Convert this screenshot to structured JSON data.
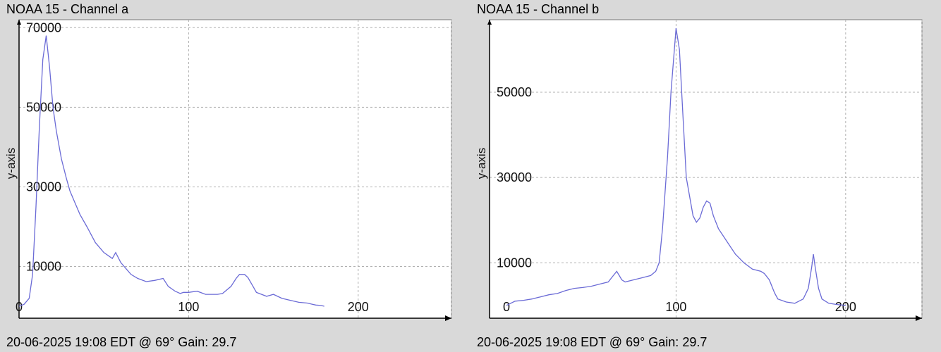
{
  "charts": [
    {
      "title": "NOAA 15 - Channel a",
      "footer": "20-06-2025 19:08 EDT @ 69° Gain: 29.7"
    },
    {
      "title": "NOAA 15 - Channel b",
      "footer": "20-06-2025 19:08 EDT @ 69° Gain: 29.7"
    }
  ],
  "colors": {
    "background": "#d9d9d9",
    "plot_background": "#ffffff",
    "line": "#6b6bd6",
    "grid": "#b0b0b0",
    "axis": "#000000"
  },
  "chart_data": [
    {
      "type": "line",
      "title": "NOAA 15 - Channel a",
      "xlabel": "",
      "ylabel": "y-axis",
      "xlim": [
        0,
        255
      ],
      "ylim": [
        -3000,
        72000
      ],
      "xticks": [
        0,
        100,
        200
      ],
      "yticks": [
        10000,
        30000,
        50000,
        70000
      ],
      "grid": true,
      "series": [
        {
          "x": [
            0,
            3,
            6,
            8,
            10,
            12,
            14,
            16,
            18,
            20,
            22,
            25,
            28,
            30,
            33,
            36,
            40,
            45,
            50,
            55,
            57,
            60,
            63,
            66,
            70,
            75,
            80,
            85,
            88,
            92,
            95,
            97,
            100,
            105,
            110,
            113,
            117,
            120,
            125,
            128,
            130,
            133,
            135,
            138,
            140,
            143,
            146,
            150,
            155,
            160,
            165,
            170,
            173,
            175,
            178,
            180
          ],
          "y": [
            0,
            500,
            2000,
            8000,
            25000,
            45000,
            62000,
            68000,
            60000,
            50000,
            44000,
            37000,
            32000,
            29000,
            26000,
            23000,
            20000,
            16000,
            13500,
            12000,
            13500,
            11000,
            9500,
            8000,
            7000,
            6200,
            6500,
            7000,
            5000,
            3800,
            3200,
            3500,
            3500,
            3800,
            3000,
            3000,
            3000,
            3200,
            5000,
            7000,
            8000,
            8000,
            7200,
            5000,
            3500,
            3000,
            2500,
            3000,
            2000,
            1500,
            1000,
            800,
            500,
            300,
            200,
            0
          ]
        }
      ]
    },
    {
      "type": "line",
      "title": "NOAA 15 - Channel b",
      "xlabel": "",
      "ylabel": "y-axis",
      "xlim": [
        -10,
        245
      ],
      "ylim": [
        -3000,
        67000
      ],
      "xticks": [
        0,
        100,
        200
      ],
      "yticks": [
        10000,
        30000,
        50000
      ],
      "grid": true,
      "series": [
        {
          "x": [
            0,
            5,
            10,
            15,
            20,
            25,
            30,
            35,
            40,
            45,
            50,
            55,
            60,
            63,
            65,
            68,
            70,
            75,
            80,
            85,
            88,
            90,
            92,
            95,
            97,
            99,
            100,
            102,
            104,
            106,
            110,
            112,
            114,
            116,
            118,
            120,
            122,
            125,
            130,
            135,
            140,
            145,
            150,
            152,
            155,
            158,
            160,
            165,
            170,
            175,
            178,
            180,
            181,
            182,
            184,
            186,
            190,
            195,
            200
          ],
          "y": [
            0,
            1000,
            1200,
            1500,
            2000,
            2500,
            2800,
            3500,
            4000,
            4200,
            4500,
            5000,
            5500,
            7000,
            8000,
            6000,
            5500,
            6000,
            6500,
            7000,
            8000,
            10000,
            18000,
            35000,
            50000,
            60000,
            65000,
            60000,
            45000,
            30000,
            21000,
            19500,
            20500,
            23000,
            24500,
            24000,
            21000,
            18000,
            15000,
            12000,
            10000,
            8500,
            8000,
            7500,
            6000,
            3000,
            1500,
            800,
            500,
            1500,
            4000,
            9000,
            12000,
            9000,
            4000,
            1500,
            500,
            200,
            0
          ]
        }
      ]
    }
  ]
}
